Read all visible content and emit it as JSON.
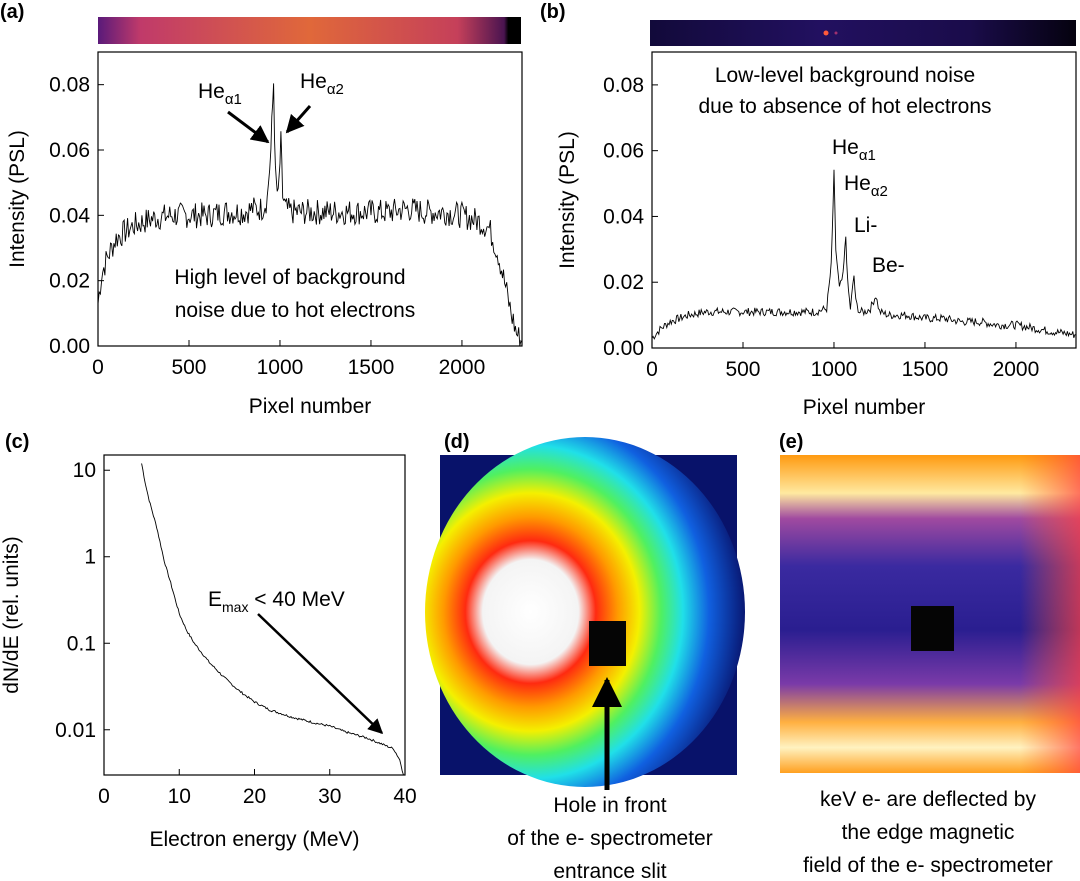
{
  "panels": {
    "a": {
      "label": "(a)"
    },
    "b": {
      "label": "(b)"
    },
    "c": {
      "label": "(c)"
    },
    "d": {
      "label": "(d)",
      "caption": [
        "Hole in front",
        "of the e- spectrometer",
        "entrance slit"
      ]
    },
    "e": {
      "label": "(e)",
      "caption": [
        "keV e- are deflected by",
        "the edge magnetic",
        "field of the e- spectrometer"
      ]
    }
  },
  "chart_data": [
    {
      "id": "a",
      "type": "line",
      "xlabel": "Pixel number",
      "ylabel": "Intensity (PSL)",
      "xlim": [
        0,
        2330
      ],
      "ylim": [
        0,
        0.09
      ],
      "xticks": [
        "0",
        "500",
        "1000",
        "1500",
        "2000"
      ],
      "xtick_values": [
        0,
        500,
        1000,
        1500,
        2000
      ],
      "yticks": [
        "0.00",
        "0.02",
        "0.04",
        "0.06",
        "0.08"
      ],
      "ytick_values": [
        0,
        0.02,
        0.04,
        0.06,
        0.08
      ],
      "series": [
        {
          "x": [
            0,
            20,
            50,
            100,
            150,
            200,
            300,
            400,
            500,
            600,
            700,
            800,
            850,
            900,
            930,
            950,
            965,
            975,
            990,
            1005,
            1015,
            1030,
            1060,
            1100,
            1200,
            1300,
            1400,
            1500,
            1600,
            1700,
            1800,
            1900,
            2000,
            2100,
            2150,
            2200,
            2240,
            2270,
            2300,
            2330
          ],
          "y": [
            0.013,
            0.022,
            0.027,
            0.033,
            0.035,
            0.037,
            0.039,
            0.04,
            0.04,
            0.04,
            0.041,
            0.041,
            0.042,
            0.042,
            0.045,
            0.06,
            0.081,
            0.052,
            0.045,
            0.062,
            0.046,
            0.042,
            0.041,
            0.041,
            0.041,
            0.041,
            0.041,
            0.041,
            0.041,
            0.042,
            0.041,
            0.041,
            0.04,
            0.038,
            0.036,
            0.028,
            0.018,
            0.01,
            0.004,
            0.001
          ]
        }
      ],
      "annotations": [
        {
          "text": "He",
          "sub": "α1"
        },
        {
          "text": "He",
          "sub": "α2"
        },
        {
          "text": "High level of background"
        },
        {
          "text": "noise due to hot electrons"
        }
      ]
    },
    {
      "id": "b",
      "type": "line",
      "xlabel": "Pixel number",
      "ylabel": "Intensity (PSL)",
      "xlim": [
        0,
        2330
      ],
      "ylim": [
        0,
        0.09
      ],
      "xticks": [
        "0",
        "500",
        "1000",
        "1500",
        "2000"
      ],
      "xtick_values": [
        0,
        500,
        1000,
        1500,
        2000
      ],
      "yticks": [
        "0.00",
        "0.02",
        "0.04",
        "0.06",
        "0.08"
      ],
      "ytick_values": [
        0,
        0.02,
        0.04,
        0.06,
        0.08
      ],
      "series": [
        {
          "x": [
            0,
            50,
            100,
            200,
            300,
            400,
            500,
            600,
            700,
            800,
            900,
            960,
            985,
            1000,
            1010,
            1030,
            1050,
            1065,
            1075,
            1090,
            1110,
            1120,
            1140,
            1170,
            1200,
            1230,
            1250,
            1300,
            1400,
            1500,
            1600,
            1700,
            1800,
            1900,
            2000,
            2100,
            2200,
            2330
          ],
          "y": [
            0.003,
            0.006,
            0.008,
            0.01,
            0.011,
            0.011,
            0.011,
            0.011,
            0.011,
            0.011,
            0.011,
            0.012,
            0.025,
            0.053,
            0.03,
            0.018,
            0.022,
            0.034,
            0.02,
            0.012,
            0.022,
            0.014,
            0.011,
            0.011,
            0.012,
            0.016,
            0.011,
            0.01,
            0.01,
            0.009,
            0.009,
            0.008,
            0.008,
            0.007,
            0.007,
            0.006,
            0.005,
            0.004
          ]
        }
      ],
      "annotations": [
        {
          "text": "Low-level background noise"
        },
        {
          "text": "due to absence of hot electrons"
        },
        {
          "text": "He",
          "sub": "α1"
        },
        {
          "text": "He",
          "sub": "α2"
        },
        {
          "text": "Li-"
        },
        {
          "text": "Be-"
        }
      ]
    },
    {
      "id": "c",
      "type": "line",
      "xlabel": "Electron energy (MeV)",
      "ylabel": "dN/dE (rel. units)",
      "yscale": "log",
      "xlim": [
        0,
        40
      ],
      "ylim": [
        0.003,
        15
      ],
      "xticks": [
        "0",
        "10",
        "20",
        "30",
        "40"
      ],
      "xtick_values": [
        0,
        10,
        20,
        30,
        40
      ],
      "yticks": [
        "0.01",
        "0.1",
        "1",
        "10"
      ],
      "ytick_values": [
        0.01,
        0.1,
        1,
        10
      ],
      "series": [
        {
          "x": [
            5,
            5.5,
            6,
            7,
            8,
            9,
            10,
            11,
            12,
            14,
            16,
            18,
            20,
            22,
            25,
            28,
            30,
            32,
            35,
            37,
            38.5,
            39.3,
            39.8
          ],
          "y": [
            12,
            7,
            4.5,
            2.2,
            0.9,
            0.45,
            0.22,
            0.14,
            0.1,
            0.06,
            0.04,
            0.028,
            0.021,
            0.017,
            0.014,
            0.012,
            0.011,
            0.0095,
            0.008,
            0.0068,
            0.006,
            0.0045,
            0.003
          ]
        }
      ],
      "annotations": [
        {
          "text": "E",
          "sub": "max",
          "rest": " < 40 MeV"
        }
      ]
    }
  ]
}
